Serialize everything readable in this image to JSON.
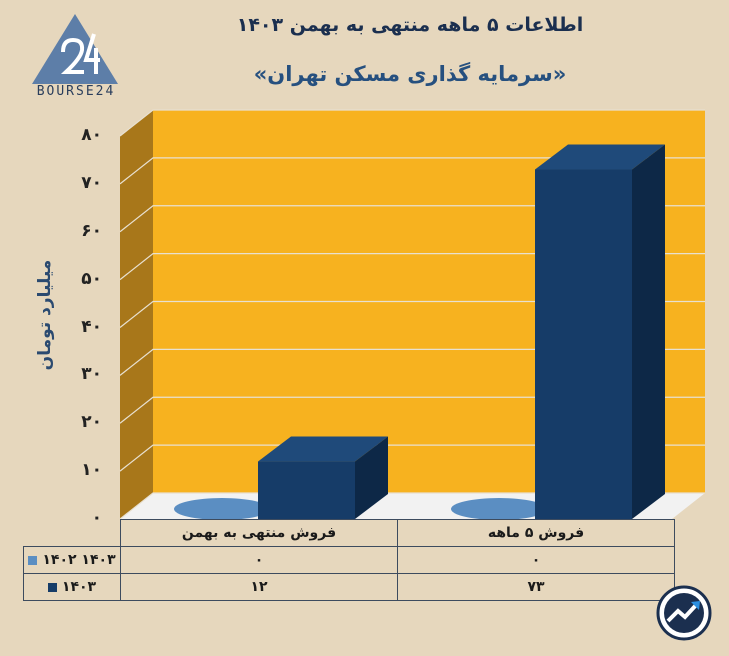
{
  "header": {
    "title": "اطلاعات ۵ ماهه منتهی به بهمن ۱۴۰۳",
    "subtitle": "«سرمایه گذاری مسکن تهران»"
  },
  "logo": {
    "text": "BOURSE24",
    "icon": "bourse24-logo-icon"
  },
  "badge": {
    "icon": "trend-up-badge-icon"
  },
  "colors": {
    "background": "#e6d7bd",
    "plot_back": "#f7b21f",
    "plot_side": "#a8771a",
    "series_1402": "#5b8ec2",
    "series_1403": "#163c68"
  },
  "chart_data": {
    "type": "bar",
    "title": "اطلاعات ۵ ماهه منتهی به بهمن ۱۴۰۳",
    "subtitle": "«سرمایه گذاری مسکن تهران»",
    "ylabel": "میلیارد تومان",
    "ylim": [
      0,
      80
    ],
    "yticks": [
      "۰",
      "۱۰",
      "۲۰",
      "۳۰",
      "۴۰",
      "۵۰",
      "۶۰",
      "۷۰",
      "۸۰"
    ],
    "categories": [
      "فروش منتهی به  بهمن",
      "فروش ۵  ماهه"
    ],
    "series": [
      {
        "name": "۱۴۰۲ ۱۴۰۳",
        "values": [
          0,
          0
        ],
        "labels": [
          "۰",
          "۰"
        ]
      },
      {
        "name": "۱۴۰۳",
        "values": [
          12,
          73
        ],
        "labels": [
          "۱۲",
          "۷۳"
        ]
      }
    ],
    "grid": true,
    "legend": "data-table"
  }
}
